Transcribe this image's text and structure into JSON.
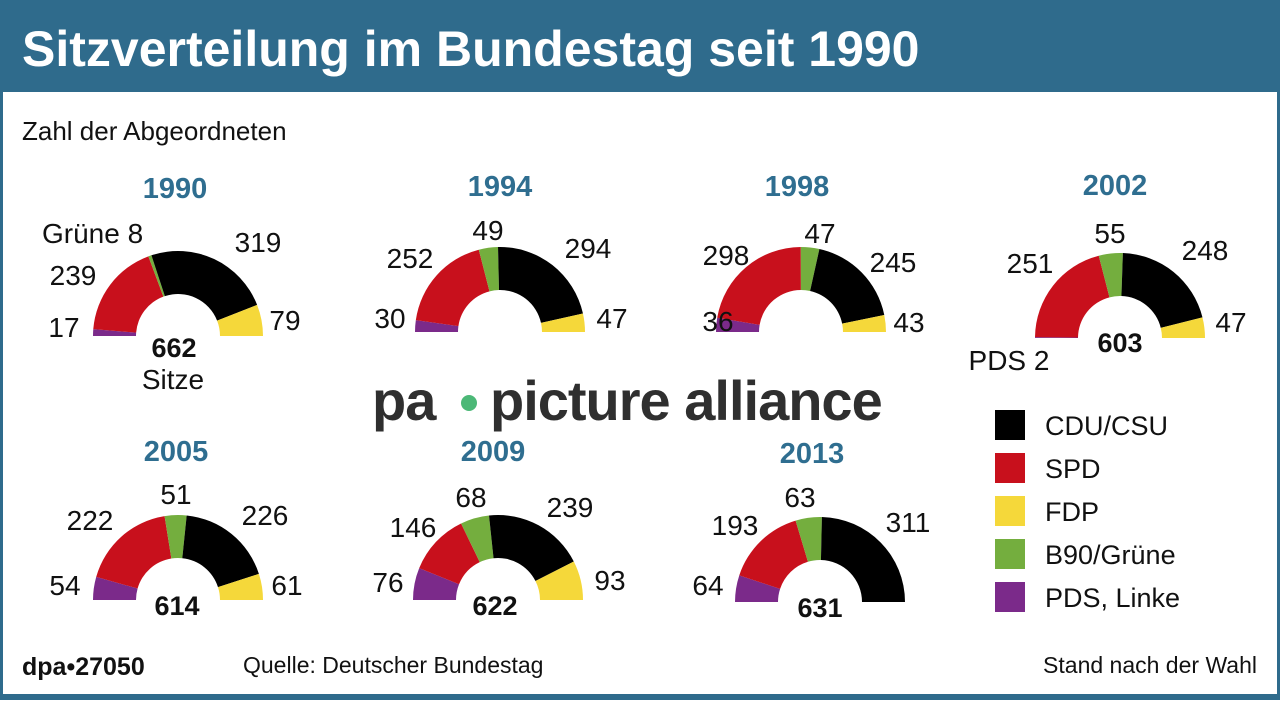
{
  "title": "Sitzverteilung im Bundestag seit 1990",
  "subtitle": "Zahl der Abgeordneten",
  "watermark": "pa picture alliance",
  "colors": {
    "frame": "#2f6b8c",
    "year": "#2f6e90"
  },
  "chart_data": {
    "type": "pie",
    "variant": "half-donut (parliament seats)",
    "parties": [
      {
        "name": "PDS, Linke",
        "color": "#7b2a8a"
      },
      {
        "name": "SPD",
        "color": "#c8101c"
      },
      {
        "name": "B90/Grüne",
        "color": "#74ae3e"
      },
      {
        "name": "CDU/CSU",
        "color": "#000000"
      },
      {
        "name": "FDP",
        "color": "#f5d83a"
      }
    ],
    "legend": {
      "placement": "bottom-right",
      "order": [
        "CDU/CSU",
        "SPD",
        "FDP",
        "B90/Grüne",
        "PDS, Linke"
      ]
    },
    "charts": [
      {
        "year": "1990",
        "total": "662",
        "total_unit": "Sitze",
        "values": [
          17,
          239,
          8,
          319,
          79
        ],
        "labels": [
          "17",
          "239",
          "Grüne 8",
          "319",
          "79"
        ]
      },
      {
        "year": "1994",
        "values": [
          30,
          252,
          49,
          294,
          47
        ],
        "labels": [
          "30",
          "252",
          "49",
          "294",
          "47"
        ]
      },
      {
        "year": "1998",
        "values": [
          36,
          298,
          47,
          245,
          43
        ],
        "labels": [
          "36",
          "298",
          "47",
          "245",
          "43"
        ]
      },
      {
        "year": "2002",
        "total": "603",
        "values": [
          2,
          251,
          55,
          248,
          47
        ],
        "labels": [
          "PDS 2",
          "251",
          "55",
          "248",
          "47"
        ]
      },
      {
        "year": "2005",
        "total": "614",
        "values": [
          54,
          222,
          51,
          226,
          61
        ],
        "labels": [
          "54",
          "222",
          "51",
          "226",
          "61"
        ]
      },
      {
        "year": "2009",
        "total": "622",
        "values": [
          76,
          146,
          68,
          239,
          93
        ],
        "labels": [
          "76",
          "146",
          "68",
          "239",
          "93"
        ]
      },
      {
        "year": "2013",
        "total": "631",
        "values": [
          64,
          193,
          63,
          311,
          0
        ],
        "labels": [
          "64",
          "193",
          "63",
          "311",
          ""
        ]
      }
    ]
  },
  "footer": {
    "id": "dpa•27050",
    "source": "Quelle: Deutscher Bundestag",
    "note": "Stand nach der Wahl"
  }
}
